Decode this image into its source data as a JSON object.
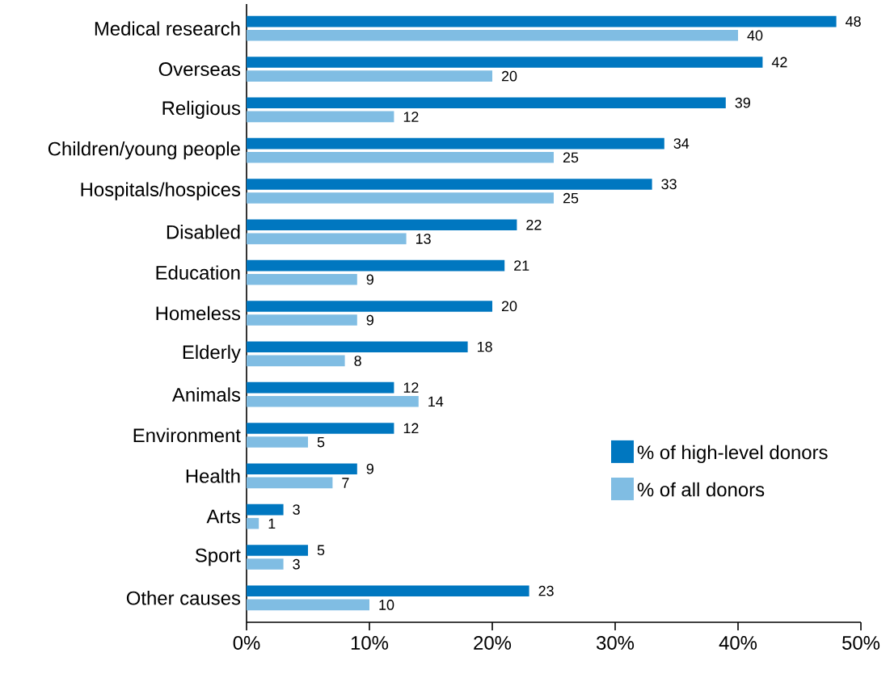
{
  "chart_data": {
    "type": "bar",
    "orientation": "horizontal",
    "categories": [
      "Medical research",
      "Overseas",
      "Religious",
      "Children/young people",
      "Hospitals/hospices",
      "Disabled",
      "Education",
      "Homeless",
      "Elderly",
      "Animals",
      "Environment",
      "Health",
      "Arts",
      "Sport",
      "Other causes"
    ],
    "series": [
      {
        "name": "% of high-level donors",
        "color": "#0077c0",
        "values": [
          48,
          42,
          39,
          34,
          33,
          22,
          21,
          20,
          18,
          12,
          12,
          9,
          3,
          5,
          23
        ]
      },
      {
        "name": "% of all donors",
        "color": "#80bde3",
        "values": [
          40,
          20,
          12,
          25,
          25,
          13,
          9,
          9,
          8,
          14,
          5,
          7,
          1,
          3,
          10
        ]
      }
    ],
    "xlim": [
      0,
      50
    ],
    "xticks": [
      {
        "value": 0,
        "label": "0%"
      },
      {
        "value": 10,
        "label": "10%"
      },
      {
        "value": 20,
        "label": "20%"
      },
      {
        "value": 30,
        "label": "30%"
      },
      {
        "value": 40,
        "label": "40%"
      },
      {
        "value": 50,
        "label": "50%"
      }
    ],
    "data_labels": true,
    "legend": "bottom right"
  }
}
